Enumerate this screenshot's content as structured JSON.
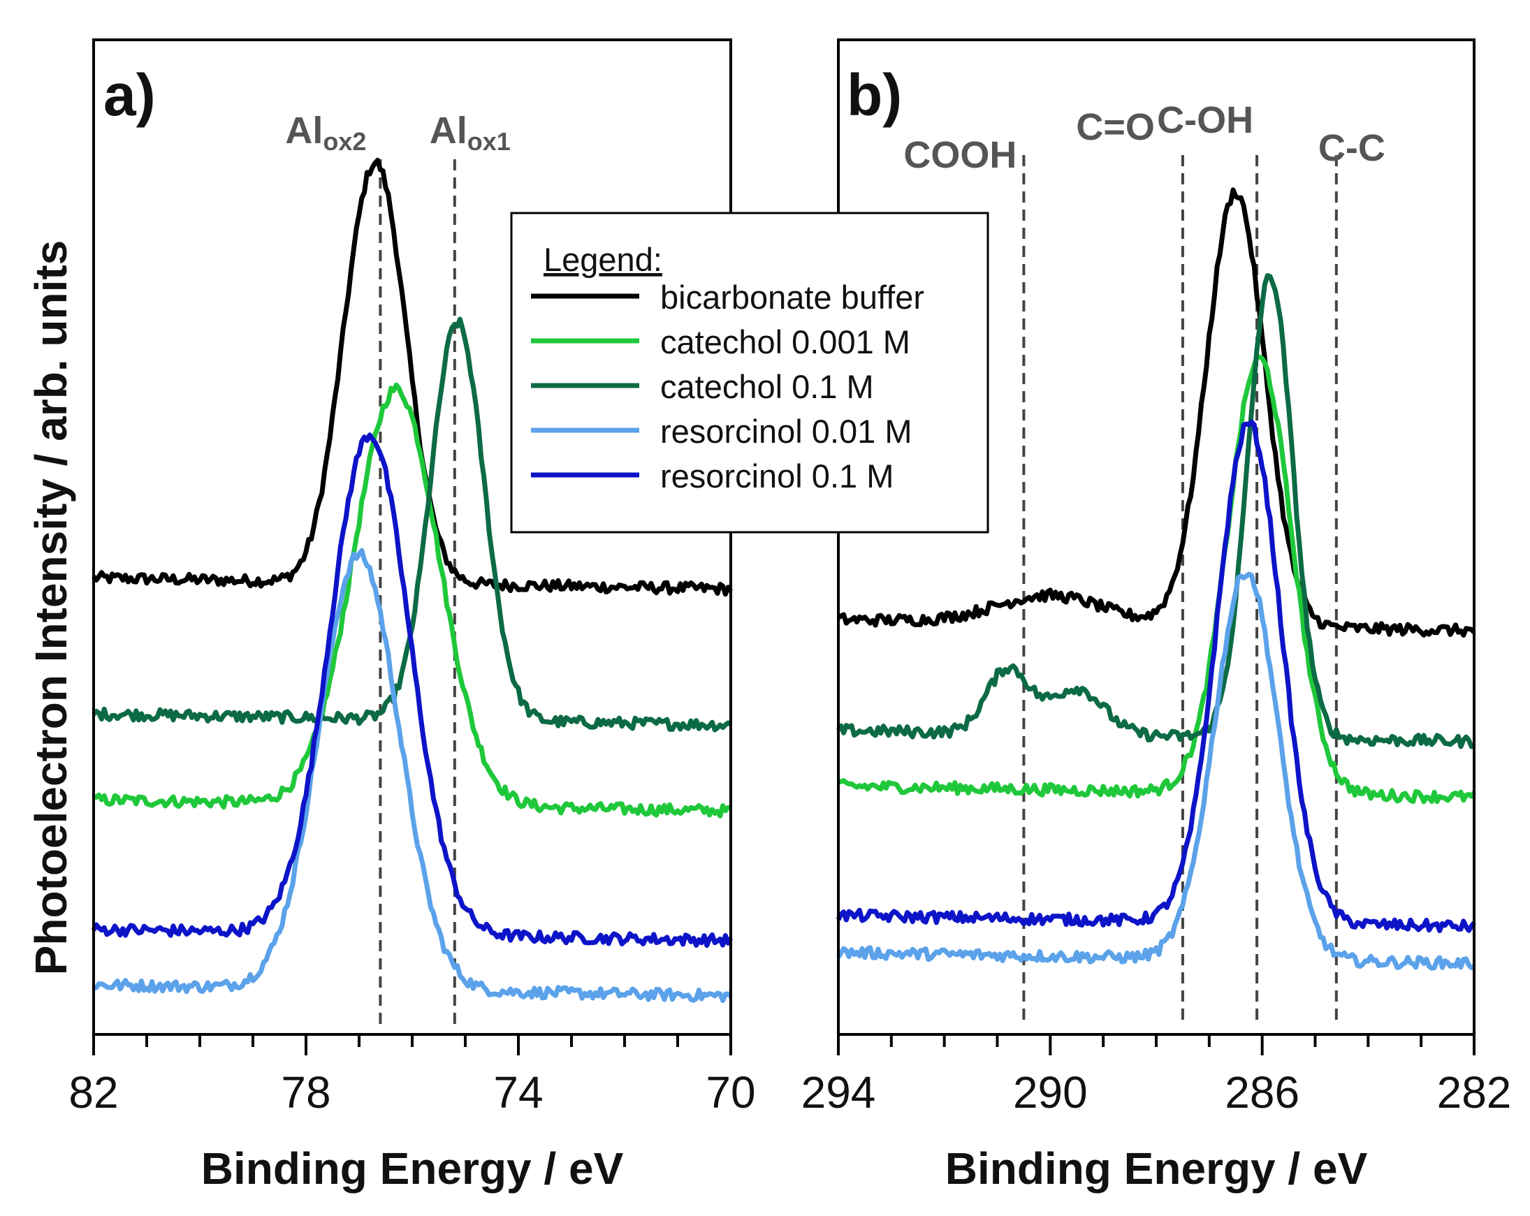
{
  "chart_data": [
    {
      "type": "line",
      "panel": "a)",
      "xlabel": "Binding Energy / eV",
      "ylabel": "Photoelectron Intensity / arb. units",
      "xlim": [
        82,
        70
      ],
      "ylim": [
        0,
        1
      ],
      "x_reversed": true,
      "xticks": [
        82,
        78,
        74,
        70
      ],
      "xtick_labels": [
        "82",
        "78",
        "74",
        "70"
      ],
      "minor_tick_step": 1,
      "reference_lines": [
        {
          "x": 76.6,
          "label": "Al",
          "sub": "ox2"
        },
        {
          "x": 75.2,
          "label": "Al",
          "sub": "ox1"
        }
      ],
      "series": [
        {
          "name": "bicarbonate buffer",
          "color": "#000000",
          "baseline": 0.465,
          "peaks": [
            {
              "center": 76.65,
              "height": 0.44,
              "width": 0.55
            },
            {
              "center": 77.3,
              "height": 0.05,
              "width": 0.4
            }
          ]
        },
        {
          "name": "catechol 0.001 M",
          "color": "#1fc83a",
          "baseline": 0.225,
          "peaks": [
            {
              "center": 76.3,
              "height": 0.45,
              "width": 0.8
            }
          ]
        },
        {
          "name": "catechol 0.1 M",
          "color": "#0c6b44",
          "baseline": 0.318,
          "peaks": [
            {
              "center": 75.15,
              "height": 0.43,
              "width": 0.5
            }
          ]
        },
        {
          "name": "resorcinol 0.01 M",
          "color": "#5ba2ea",
          "baseline": 0.025,
          "peaks": [
            {
              "center": 77.0,
              "height": 0.47,
              "width": 0.75
            }
          ]
        },
        {
          "name": "resorcinol 0.1 M",
          "color": "#0d14c8",
          "baseline": 0.085,
          "peaks": [
            {
              "center": 76.8,
              "height": 0.54,
              "width": 0.75
            }
          ]
        }
      ]
    },
    {
      "type": "line",
      "panel": "b)",
      "xlabel": "Binding Energy / eV",
      "ylabel": "",
      "xlim": [
        294,
        282
      ],
      "ylim": [
        0,
        1
      ],
      "x_reversed": true,
      "xticks": [
        294,
        290,
        286,
        282
      ],
      "xtick_labels": [
        "294",
        "290",
        "286",
        "282"
      ],
      "minor_tick_step": 1,
      "reference_lines": [
        {
          "x": 290.5,
          "label": "COOH"
        },
        {
          "x": 287.5,
          "label": "C=O"
        },
        {
          "x": 286.1,
          "label": "C-OH"
        },
        {
          "x": 284.6,
          "label": "C-C"
        }
      ],
      "series": [
        {
          "name": "bicarbonate buffer",
          "color": "#000000",
          "baseline": 0.42,
          "peaks": [
            {
              "center": 286.5,
              "height": 0.47,
              "width": 0.55
            },
            {
              "center": 290.0,
              "height": 0.03,
              "width": 1.0
            }
          ]
        },
        {
          "name": "catechol 0.001 M",
          "color": "#1fc83a",
          "baseline": 0.24,
          "peaks": [
            {
              "center": 286.05,
              "height": 0.47,
              "width": 0.6
            }
          ]
        },
        {
          "name": "catechol 0.1 M",
          "color": "#0c6b44",
          "baseline": 0.3,
          "peaks": [
            {
              "center": 285.85,
              "height": 0.5,
              "width": 0.42
            },
            {
              "center": 290.8,
              "height": 0.07,
              "width": 0.4
            },
            {
              "center": 289.5,
              "height": 0.05,
              "width": 0.5
            }
          ]
        },
        {
          "name": "resorcinol 0.01 M",
          "color": "#5ba2ea",
          "baseline": 0.06,
          "peaks": [
            {
              "center": 286.3,
              "height": 0.42,
              "width": 0.6
            }
          ]
        },
        {
          "name": "resorcinol 0.1 M",
          "color": "#0d14c8",
          "baseline": 0.1,
          "peaks": [
            {
              "center": 286.25,
              "height": 0.54,
              "width": 0.6
            }
          ]
        }
      ]
    }
  ],
  "legend": {
    "title": "Legend:",
    "entries": [
      {
        "label": "bicarbonate buffer",
        "color": "#000000"
      },
      {
        "label": "catechol 0.001 M",
        "color": "#1fc83a"
      },
      {
        "label": "catechol 0.1 M",
        "color": "#0c6b44"
      },
      {
        "label": "resorcinol 0.01 M",
        "color": "#5ba2ea"
      },
      {
        "label": "resorcinol 0.1 M",
        "color": "#0d14c8"
      }
    ]
  }
}
